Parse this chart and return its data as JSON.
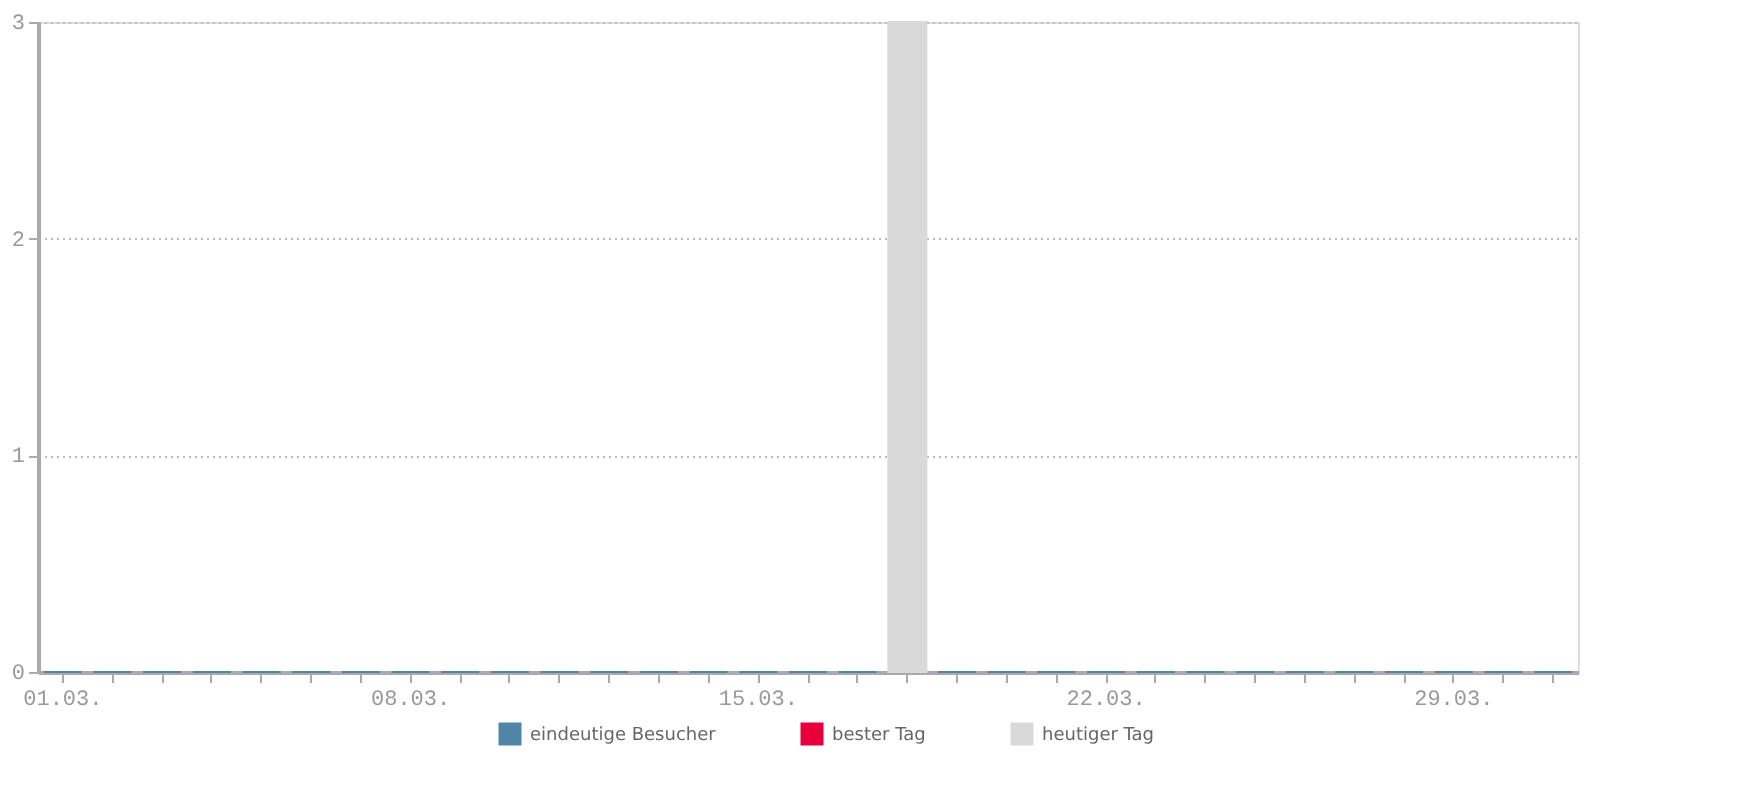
{
  "chart_data": {
    "type": "bar",
    "categories": [
      "01.03.",
      null,
      null,
      null,
      null,
      null,
      null,
      "08.03.",
      null,
      null,
      null,
      null,
      null,
      null,
      "15.03.",
      null,
      null,
      null,
      null,
      null,
      null,
      "22.03.",
      null,
      null,
      null,
      null,
      null,
      null,
      "29.03.",
      null,
      null
    ],
    "series": [
      {
        "name": "eindeutige Besucher",
        "color": "#4f86a6",
        "values": [
          0,
          0,
          0,
          0,
          0,
          0,
          0,
          0,
          0,
          0,
          0,
          0,
          0,
          0,
          0,
          0,
          0,
          null,
          0,
          0,
          0,
          0,
          0,
          0,
          0,
          0,
          0,
          0,
          0,
          0,
          0
        ]
      },
      {
        "name": "bester Tag",
        "color": "#e8003c",
        "values": [
          null,
          null,
          null,
          null,
          null,
          null,
          null,
          null,
          null,
          null,
          null,
          null,
          null,
          null,
          null,
          null,
          null,
          null,
          null,
          null,
          null,
          null,
          null,
          null,
          null,
          null,
          null,
          null,
          null,
          null,
          null
        ]
      },
      {
        "name": "heutiger Tag",
        "color": "#d9d9d9",
        "values": [
          null,
          null,
          null,
          null,
          null,
          null,
          null,
          null,
          null,
          null,
          null,
          null,
          null,
          null,
          null,
          null,
          null,
          3,
          null,
          null,
          null,
          null,
          null,
          null,
          null,
          null,
          null,
          null,
          null,
          null,
          null
        ]
      }
    ],
    "ylim": [
      0,
      3
    ],
    "yticks": [
      0,
      1,
      2,
      3
    ],
    "grid": "y",
    "legend": "bottom"
  }
}
